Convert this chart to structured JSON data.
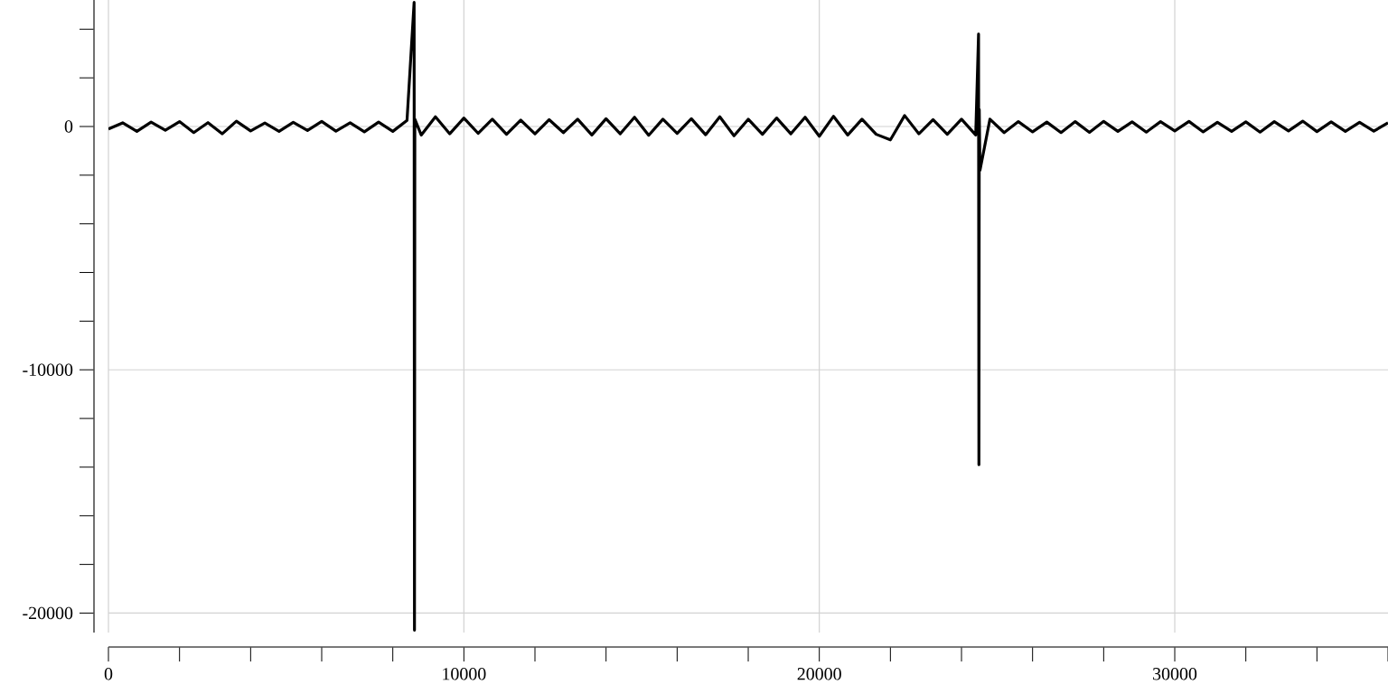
{
  "chart_data": {
    "type": "line",
    "x": [
      0,
      400,
      800,
      1200,
      1600,
      2000,
      2400,
      2800,
      3200,
      3600,
      4000,
      4400,
      4800,
      5200,
      5600,
      6000,
      6400,
      6800,
      7200,
      7600,
      8000,
      8400,
      8600,
      8610,
      8620,
      8800,
      9200,
      9600,
      10000,
      10400,
      10800,
      11200,
      11600,
      12000,
      12400,
      12800,
      13200,
      13600,
      14000,
      14400,
      14800,
      15200,
      15600,
      16000,
      16400,
      16800,
      17200,
      17600,
      18000,
      18400,
      18800,
      19200,
      19600,
      20000,
      20400,
      20800,
      21200,
      21600,
      22000,
      22400,
      22800,
      23200,
      23600,
      24000,
      24400,
      24480,
      24490,
      24500,
      24520,
      24800,
      25200,
      25600,
      26000,
      26400,
      26800,
      27200,
      27600,
      28000,
      28400,
      28800,
      29200,
      29600,
      30000,
      30400,
      30800,
      31200,
      31600,
      32000,
      32400,
      32800,
      33200,
      33600,
      34000,
      34400,
      34800,
      35200,
      35600,
      36000
    ],
    "series": [
      {
        "color": "#000000",
        "values": [
          -100,
          150,
          -200,
          180,
          -150,
          200,
          -250,
          160,
          -300,
          220,
          -180,
          140,
          -200,
          170,
          -160,
          210,
          -190,
          150,
          -220,
          180,
          -200,
          250,
          5100,
          -20700,
          300,
          -350,
          400,
          -300,
          350,
          -280,
          300,
          -320,
          260,
          -300,
          280,
          -250,
          300,
          -350,
          320,
          -300,
          380,
          -360,
          300,
          -280,
          320,
          -340,
          400,
          -380,
          300,
          -320,
          350,
          -300,
          380,
          -400,
          420,
          -350,
          300,
          -320,
          -550,
          450,
          -300,
          280,
          -320,
          300,
          -350,
          3800,
          -13900,
          700,
          -1800,
          300,
          -250,
          200,
          -220,
          180,
          -250,
          200,
          -240,
          210,
          -200,
          190,
          -230,
          200,
          -180,
          210,
          -220,
          170,
          -200,
          190,
          -230,
          200,
          -180,
          220,
          -210,
          190,
          -200,
          170,
          -190,
          150
        ]
      }
    ],
    "xlim": [
      0,
      36000
    ],
    "ylim": [
      -20800,
      5200
    ],
    "xticks": [
      0,
      {
        "value": 2000,
        "label": null
      },
      {
        "value": 4000,
        "label": null
      },
      {
        "value": 6000,
        "label": null
      },
      {
        "value": 8000,
        "label": null
      },
      10000,
      {
        "value": 12000,
        "label": null
      },
      {
        "value": 14000,
        "label": null
      },
      {
        "value": 16000,
        "label": null
      },
      {
        "value": 18000,
        "label": null
      },
      20000,
      {
        "value": 22000,
        "label": null
      },
      {
        "value": 24000,
        "label": null
      },
      {
        "value": 26000,
        "label": null
      },
      {
        "value": 28000,
        "label": null
      },
      30000,
      {
        "value": 32000,
        "label": null
      },
      {
        "value": 34000,
        "label": null
      },
      {
        "value": 36000,
        "label": null
      }
    ],
    "yticks": [
      -20000,
      {
        "value": -18000,
        "label": null
      },
      {
        "value": -16000,
        "label": null
      },
      {
        "value": -14000,
        "label": null
      },
      {
        "value": -12000,
        "label": null
      },
      -10000,
      {
        "value": -8000,
        "label": null
      },
      {
        "value": -6000,
        "label": null
      },
      {
        "value": -4000,
        "label": null
      },
      {
        "value": -2000,
        "label": null
      },
      0,
      {
        "value": 2000,
        "label": null
      },
      {
        "value": 4000,
        "label": null
      }
    ],
    "grid": true
  }
}
